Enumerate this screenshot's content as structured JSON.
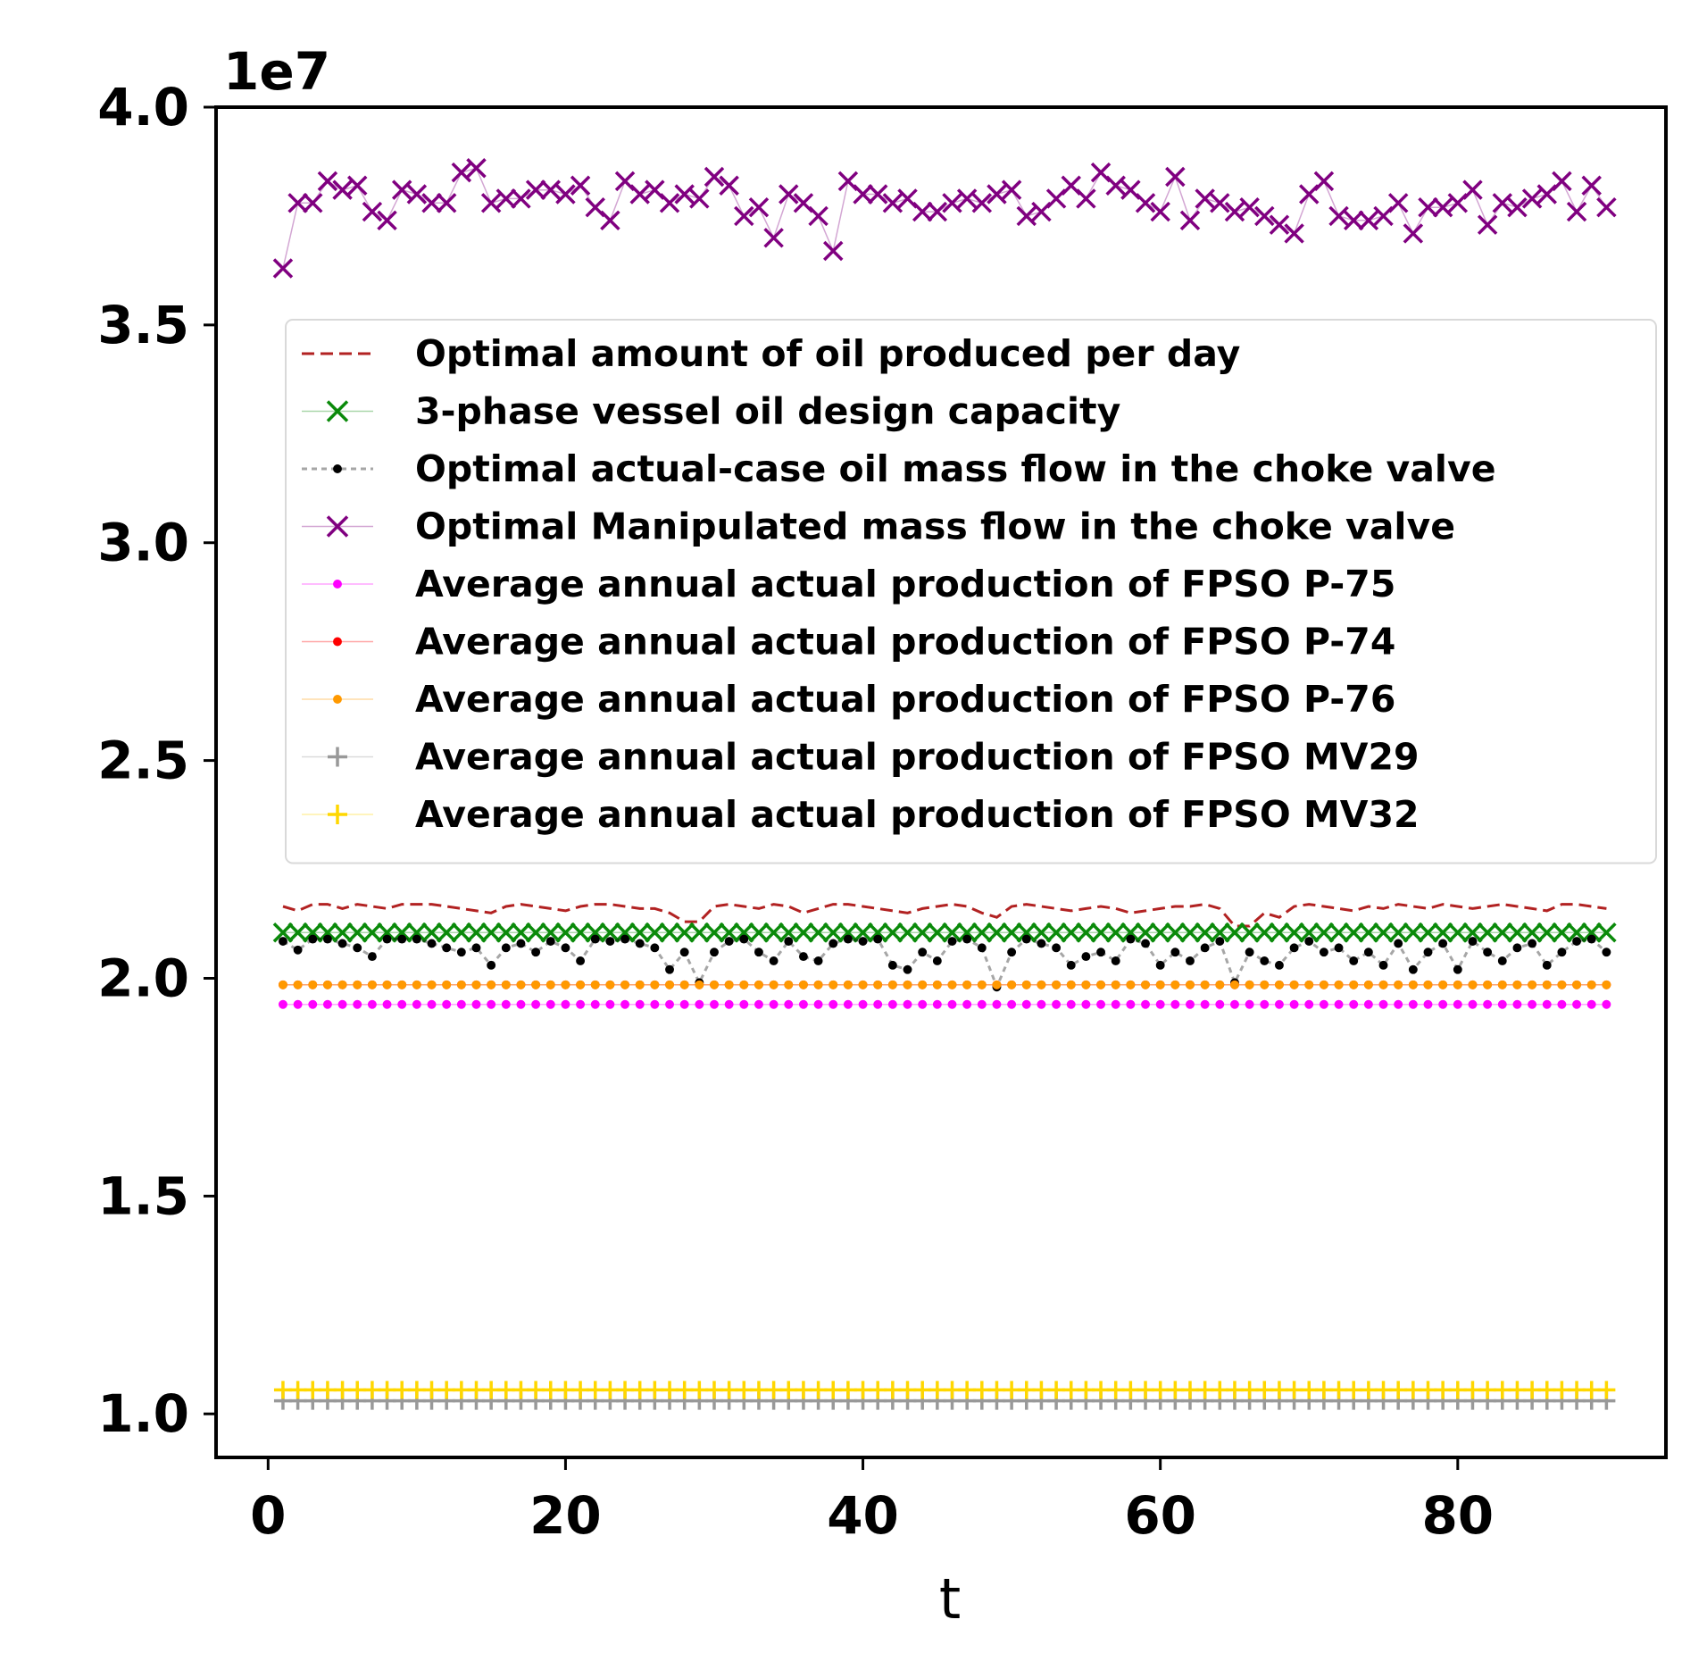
{
  "chart_data": {
    "type": "line",
    "xlabel": "t",
    "ylabel": "",
    "y_offset_label": "1e7",
    "xlim": [
      -3.5,
      94
    ],
    "ylim": [
      0.9,
      4.0
    ],
    "x_ticks": [
      0,
      20,
      40,
      60,
      80
    ],
    "x_tick_labels": [
      "0",
      "20",
      "40",
      "60",
      "80"
    ],
    "y_ticks": [
      1.0,
      1.5,
      2.0,
      2.5,
      3.0,
      3.5,
      4.0
    ],
    "y_tick_labels": [
      "1.0",
      "1.5",
      "2.0",
      "2.5",
      "3.0",
      "3.5",
      "4.0"
    ],
    "grid": false,
    "legend_position": "upper center",
    "x": [
      1,
      2,
      3,
      4,
      5,
      6,
      7,
      8,
      9,
      10,
      11,
      12,
      13,
      14,
      15,
      16,
      17,
      18,
      19,
      20,
      21,
      22,
      23,
      24,
      25,
      26,
      27,
      28,
      29,
      30,
      31,
      32,
      33,
      34,
      35,
      36,
      37,
      38,
      39,
      40,
      41,
      42,
      43,
      44,
      45,
      46,
      47,
      48,
      49,
      50,
      51,
      52,
      53,
      54,
      55,
      56,
      57,
      58,
      59,
      60,
      61,
      62,
      63,
      64,
      65,
      66,
      67,
      68,
      69,
      70,
      71,
      72,
      73,
      74,
      75,
      76,
      77,
      78,
      79,
      80,
      81,
      82,
      83,
      84,
      85,
      86,
      87,
      88,
      89,
      90
    ],
    "series": [
      {
        "name": "Optimal amount of oil produced per day",
        "color": "#b22222",
        "line": "dashed",
        "marker": "none",
        "values": [
          2.165,
          2.155,
          2.17,
          2.17,
          2.16,
          2.17,
          2.165,
          2.16,
          2.17,
          2.17,
          2.17,
          2.165,
          2.16,
          2.155,
          2.15,
          2.165,
          2.17,
          2.165,
          2.16,
          2.155,
          2.165,
          2.17,
          2.17,
          2.165,
          2.16,
          2.16,
          2.15,
          2.13,
          2.13,
          2.165,
          2.17,
          2.165,
          2.16,
          2.17,
          2.165,
          2.15,
          2.16,
          2.17,
          2.17,
          2.165,
          2.16,
          2.155,
          2.15,
          2.16,
          2.165,
          2.17,
          2.165,
          2.15,
          2.14,
          2.165,
          2.17,
          2.165,
          2.16,
          2.155,
          2.16,
          2.165,
          2.16,
          2.15,
          2.155,
          2.16,
          2.165,
          2.165,
          2.17,
          2.16,
          2.12,
          2.12,
          2.15,
          2.14,
          2.165,
          2.17,
          2.165,
          2.16,
          2.155,
          2.165,
          2.16,
          2.17,
          2.165,
          2.16,
          2.17,
          2.165,
          2.16,
          2.165,
          2.17,
          2.165,
          2.16,
          2.155,
          2.17,
          2.17,
          2.165,
          2.16
        ]
      },
      {
        "name": "3-phase vessel oil design capacity",
        "color": "#0a8a0a",
        "line": "solid",
        "marker": "x",
        "values": [
          2.105,
          2.105,
          2.105,
          2.105,
          2.105,
          2.105,
          2.105,
          2.105,
          2.105,
          2.105,
          2.105,
          2.105,
          2.105,
          2.105,
          2.105,
          2.105,
          2.105,
          2.105,
          2.105,
          2.105,
          2.105,
          2.105,
          2.105,
          2.105,
          2.105,
          2.105,
          2.105,
          2.105,
          2.105,
          2.105,
          2.105,
          2.105,
          2.105,
          2.105,
          2.105,
          2.105,
          2.105,
          2.105,
          2.105,
          2.105,
          2.105,
          2.105,
          2.105,
          2.105,
          2.105,
          2.105,
          2.105,
          2.105,
          2.105,
          2.105,
          2.105,
          2.105,
          2.105,
          2.105,
          2.105,
          2.105,
          2.105,
          2.105,
          2.105,
          2.105,
          2.105,
          2.105,
          2.105,
          2.105,
          2.105,
          2.105,
          2.105,
          2.105,
          2.105,
          2.105,
          2.105,
          2.105,
          2.105,
          2.105,
          2.105,
          2.105,
          2.105,
          2.105,
          2.105,
          2.105,
          2.105,
          2.105,
          2.105,
          2.105,
          2.105,
          2.105,
          2.105,
          2.105,
          2.105,
          2.105
        ]
      },
      {
        "name": "Optimal actual-case oil mass flow in the choke valve",
        "color": "#000000",
        "line": "dashed",
        "marker": "dot",
        "values": [
          2.085,
          2.065,
          2.09,
          2.09,
          2.08,
          2.07,
          2.05,
          2.09,
          2.09,
          2.09,
          2.08,
          2.07,
          2.06,
          2.07,
          2.03,
          2.07,
          2.08,
          2.06,
          2.085,
          2.07,
          2.04,
          2.09,
          2.085,
          2.09,
          2.08,
          2.07,
          2.02,
          2.06,
          1.99,
          2.06,
          2.085,
          2.09,
          2.06,
          2.04,
          2.085,
          2.05,
          2.04,
          2.08,
          2.09,
          2.085,
          2.09,
          2.03,
          2.02,
          2.06,
          2.04,
          2.085,
          2.09,
          2.07,
          1.98,
          2.06,
          2.09,
          2.08,
          2.07,
          2.03,
          2.05,
          2.06,
          2.04,
          2.09,
          2.08,
          2.03,
          2.06,
          2.04,
          2.07,
          2.085,
          1.99,
          2.06,
          2.04,
          2.03,
          2.07,
          2.085,
          2.06,
          2.07,
          2.04,
          2.06,
          2.03,
          2.08,
          2.02,
          2.06,
          2.08,
          2.02,
          2.085,
          2.06,
          2.04,
          2.07,
          2.08,
          2.03,
          2.06,
          2.085,
          2.09,
          2.06
        ]
      },
      {
        "name": "Optimal Manipulated mass flow in the choke valve",
        "color": "#800080",
        "line": "solid",
        "marker": "x",
        "values": [
          3.63,
          3.78,
          3.78,
          3.83,
          3.81,
          3.82,
          3.76,
          3.74,
          3.81,
          3.8,
          3.78,
          3.78,
          3.85,
          3.86,
          3.78,
          3.79,
          3.79,
          3.81,
          3.81,
          3.8,
          3.82,
          3.77,
          3.74,
          3.83,
          3.8,
          3.81,
          3.78,
          3.8,
          3.79,
          3.84,
          3.82,
          3.75,
          3.77,
          3.7,
          3.8,
          3.78,
          3.75,
          3.67,
          3.83,
          3.8,
          3.8,
          3.78,
          3.79,
          3.76,
          3.76,
          3.78,
          3.79,
          3.78,
          3.8,
          3.81,
          3.75,
          3.76,
          3.79,
          3.82,
          3.79,
          3.85,
          3.82,
          3.81,
          3.78,
          3.76,
          3.84,
          3.74,
          3.79,
          3.78,
          3.76,
          3.77,
          3.75,
          3.73,
          3.71,
          3.8,
          3.83,
          3.75,
          3.74,
          3.74,
          3.75,
          3.78,
          3.71,
          3.77,
          3.77,
          3.78,
          3.81,
          3.73,
          3.78,
          3.77,
          3.79,
          3.8,
          3.83,
          3.76,
          3.82,
          3.77
        ]
      },
      {
        "name": "Average annual actual production of FPSO P-75",
        "color": "#ff00ff",
        "line": "solid",
        "marker": "dot",
        "values": [
          1.94,
          1.94,
          1.94,
          1.94,
          1.94,
          1.94,
          1.94,
          1.94,
          1.94,
          1.94,
          1.94,
          1.94,
          1.94,
          1.94,
          1.94,
          1.94,
          1.94,
          1.94,
          1.94,
          1.94,
          1.94,
          1.94,
          1.94,
          1.94,
          1.94,
          1.94,
          1.94,
          1.94,
          1.94,
          1.94,
          1.94,
          1.94,
          1.94,
          1.94,
          1.94,
          1.94,
          1.94,
          1.94,
          1.94,
          1.94,
          1.94,
          1.94,
          1.94,
          1.94,
          1.94,
          1.94,
          1.94,
          1.94,
          1.94,
          1.94,
          1.94,
          1.94,
          1.94,
          1.94,
          1.94,
          1.94,
          1.94,
          1.94,
          1.94,
          1.94,
          1.94,
          1.94,
          1.94,
          1.94,
          1.94,
          1.94,
          1.94,
          1.94,
          1.94,
          1.94,
          1.94,
          1.94,
          1.94,
          1.94,
          1.94,
          1.94,
          1.94,
          1.94,
          1.94,
          1.94,
          1.94,
          1.94,
          1.94,
          1.94,
          1.94,
          1.94,
          1.94,
          1.94,
          1.94,
          1.94
        ]
      },
      {
        "name": "Average annual actual production of FPSO P-74",
        "color": "#ff0000",
        "line": "solid",
        "marker": "dot",
        "values": [
          1.985,
          1.985,
          1.985,
          1.985,
          1.985,
          1.985,
          1.985,
          1.985,
          1.985,
          1.985,
          1.985,
          1.985,
          1.985,
          1.985,
          1.985,
          1.985,
          1.985,
          1.985,
          1.985,
          1.985,
          1.985,
          1.985,
          1.985,
          1.985,
          1.985,
          1.985,
          1.985,
          1.985,
          1.985,
          1.985,
          1.985,
          1.985,
          1.985,
          1.985,
          1.985,
          1.985,
          1.985,
          1.985,
          1.985,
          1.985,
          1.985,
          1.985,
          1.985,
          1.985,
          1.985,
          1.985,
          1.985,
          1.985,
          1.985,
          1.985,
          1.985,
          1.985,
          1.985,
          1.985,
          1.985,
          1.985,
          1.985,
          1.985,
          1.985,
          1.985,
          1.985,
          1.985,
          1.985,
          1.985,
          1.985,
          1.985,
          1.985,
          1.985,
          1.985,
          1.985,
          1.985,
          1.985,
          1.985,
          1.985,
          1.985,
          1.985,
          1.985,
          1.985,
          1.985,
          1.985,
          1.985,
          1.985,
          1.985,
          1.985,
          1.985,
          1.985,
          1.985,
          1.985,
          1.985,
          1.985
        ]
      },
      {
        "name": "Average annual actual production of FPSO P-76",
        "color": "#ff9900",
        "line": "solid",
        "marker": "dot",
        "values": [
          1.985,
          1.985,
          1.985,
          1.985,
          1.985,
          1.985,
          1.985,
          1.985,
          1.985,
          1.985,
          1.985,
          1.985,
          1.985,
          1.985,
          1.985,
          1.985,
          1.985,
          1.985,
          1.985,
          1.985,
          1.985,
          1.985,
          1.985,
          1.985,
          1.985,
          1.985,
          1.985,
          1.985,
          1.985,
          1.985,
          1.985,
          1.985,
          1.985,
          1.985,
          1.985,
          1.985,
          1.985,
          1.985,
          1.985,
          1.985,
          1.985,
          1.985,
          1.985,
          1.985,
          1.985,
          1.985,
          1.985,
          1.985,
          1.985,
          1.985,
          1.985,
          1.985,
          1.985,
          1.985,
          1.985,
          1.985,
          1.985,
          1.985,
          1.985,
          1.985,
          1.985,
          1.985,
          1.985,
          1.985,
          1.985,
          1.985,
          1.985,
          1.985,
          1.985,
          1.985,
          1.985,
          1.985,
          1.985,
          1.985,
          1.985,
          1.985,
          1.985,
          1.985,
          1.985,
          1.985,
          1.985,
          1.985,
          1.985,
          1.985,
          1.985,
          1.985,
          1.985,
          1.985,
          1.985,
          1.985
        ]
      },
      {
        "name": "Average annual actual production of FPSO MV29",
        "color": "#999999",
        "line": "solid",
        "marker": "plus",
        "values": [
          1.03,
          1.03,
          1.03,
          1.03,
          1.03,
          1.03,
          1.03,
          1.03,
          1.03,
          1.03,
          1.03,
          1.03,
          1.03,
          1.03,
          1.03,
          1.03,
          1.03,
          1.03,
          1.03,
          1.03,
          1.03,
          1.03,
          1.03,
          1.03,
          1.03,
          1.03,
          1.03,
          1.03,
          1.03,
          1.03,
          1.03,
          1.03,
          1.03,
          1.03,
          1.03,
          1.03,
          1.03,
          1.03,
          1.03,
          1.03,
          1.03,
          1.03,
          1.03,
          1.03,
          1.03,
          1.03,
          1.03,
          1.03,
          1.03,
          1.03,
          1.03,
          1.03,
          1.03,
          1.03,
          1.03,
          1.03,
          1.03,
          1.03,
          1.03,
          1.03,
          1.03,
          1.03,
          1.03,
          1.03,
          1.03,
          1.03,
          1.03,
          1.03,
          1.03,
          1.03,
          1.03,
          1.03,
          1.03,
          1.03,
          1.03,
          1.03,
          1.03,
          1.03,
          1.03,
          1.03,
          1.03,
          1.03,
          1.03,
          1.03,
          1.03,
          1.03,
          1.03,
          1.03,
          1.03,
          1.03
        ]
      },
      {
        "name": "Average annual actual production of FPSO MV32",
        "color": "#ffd700",
        "line": "solid",
        "marker": "plus",
        "values": [
          1.055,
          1.055,
          1.055,
          1.055,
          1.055,
          1.055,
          1.055,
          1.055,
          1.055,
          1.055,
          1.055,
          1.055,
          1.055,
          1.055,
          1.055,
          1.055,
          1.055,
          1.055,
          1.055,
          1.055,
          1.055,
          1.055,
          1.055,
          1.055,
          1.055,
          1.055,
          1.055,
          1.055,
          1.055,
          1.055,
          1.055,
          1.055,
          1.055,
          1.055,
          1.055,
          1.055,
          1.055,
          1.055,
          1.055,
          1.055,
          1.055,
          1.055,
          1.055,
          1.055,
          1.055,
          1.055,
          1.055,
          1.055,
          1.055,
          1.055,
          1.055,
          1.055,
          1.055,
          1.055,
          1.055,
          1.055,
          1.055,
          1.055,
          1.055,
          1.055,
          1.055,
          1.055,
          1.055,
          1.055,
          1.055,
          1.055,
          1.055,
          1.055,
          1.055,
          1.055,
          1.055,
          1.055,
          1.055,
          1.055,
          1.055,
          1.055,
          1.055,
          1.055,
          1.055,
          1.055,
          1.055,
          1.055,
          1.055,
          1.055,
          1.055,
          1.055,
          1.055,
          1.055,
          1.055,
          1.055
        ]
      }
    ]
  }
}
